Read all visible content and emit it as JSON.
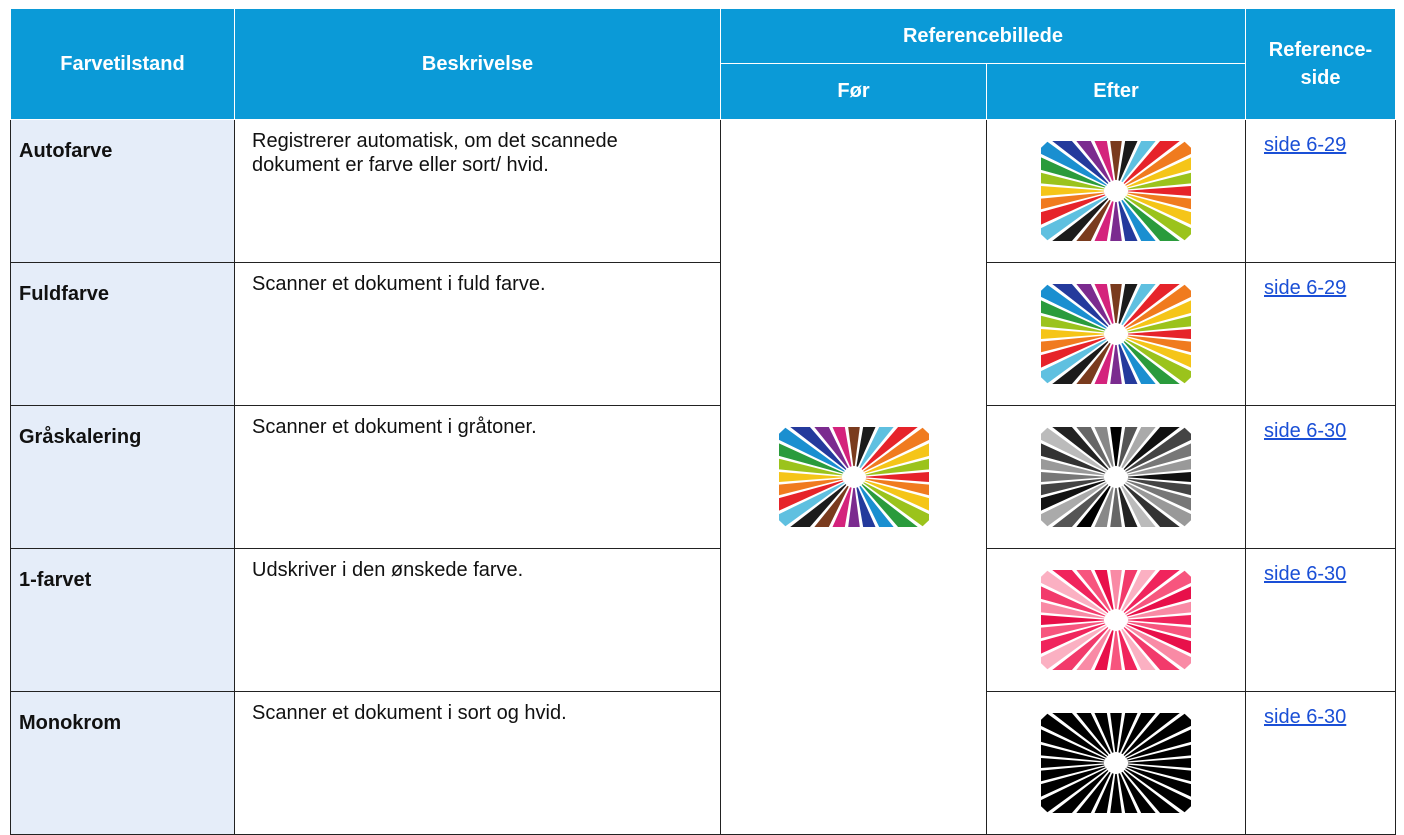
{
  "header": {
    "mode": "Farvetilstand",
    "description": "Beskrivelse",
    "reference_image": "Referencebillede",
    "before": "Før",
    "after": "Efter",
    "reference_page": "Reference-side"
  },
  "table": {
    "rows": [
      [
        "Autofarve",
        "Registrerer automatisk, om det scannede dokument er farve eller sort/ hvid.",
        "side 6-29"
      ],
      [
        "Fuldfarve",
        "Scanner et dokument i fuld farve.",
        "side 6-29"
      ],
      [
        "Gråskalering",
        "Scanner et dokument i gråtoner.",
        "side 6-30"
      ],
      [
        "1-farvet",
        "Udskriver i den ønskede farve.",
        "side 6-30"
      ],
      [
        "Monokrom",
        "Scanner et dokument i sort og hvid.",
        "side 6-30"
      ]
    ]
  }
}
